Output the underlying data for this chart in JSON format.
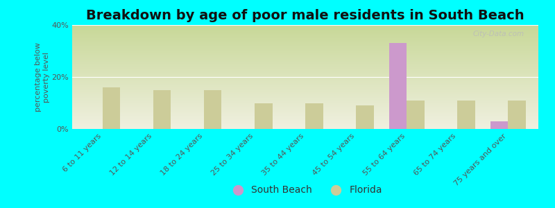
{
  "title": "Breakdown by age of poor male residents in South Beach",
  "ylabel": "percentage below\npoverty level",
  "background_color": "#00FFFF",
  "plot_bg_top": "#c8d898",
  "plot_bg_bottom": "#f0f0e0",
  "categories": [
    "6 to 11 years",
    "12 to 14 years",
    "18 to 24 years",
    "25 to 34 years",
    "35 to 44 years",
    "45 to 54 years",
    "55 to 64 years",
    "65 to 74 years",
    "75 years and over"
  ],
  "south_beach_values": [
    0,
    0,
    0,
    0,
    0,
    0,
    33,
    0,
    3
  ],
  "florida_values": [
    16,
    15,
    15,
    10,
    10,
    9,
    11,
    11,
    11
  ],
  "south_beach_color": "#cc99cc",
  "florida_color": "#cccc99",
  "ylim": [
    0,
    40
  ],
  "yticks": [
    0,
    20,
    40
  ],
  "ytick_labels": [
    "0%",
    "20%",
    "40%"
  ],
  "bar_width": 0.35,
  "title_fontsize": 14,
  "axis_label_fontsize": 8,
  "tick_fontsize": 8,
  "legend_fontsize": 10
}
